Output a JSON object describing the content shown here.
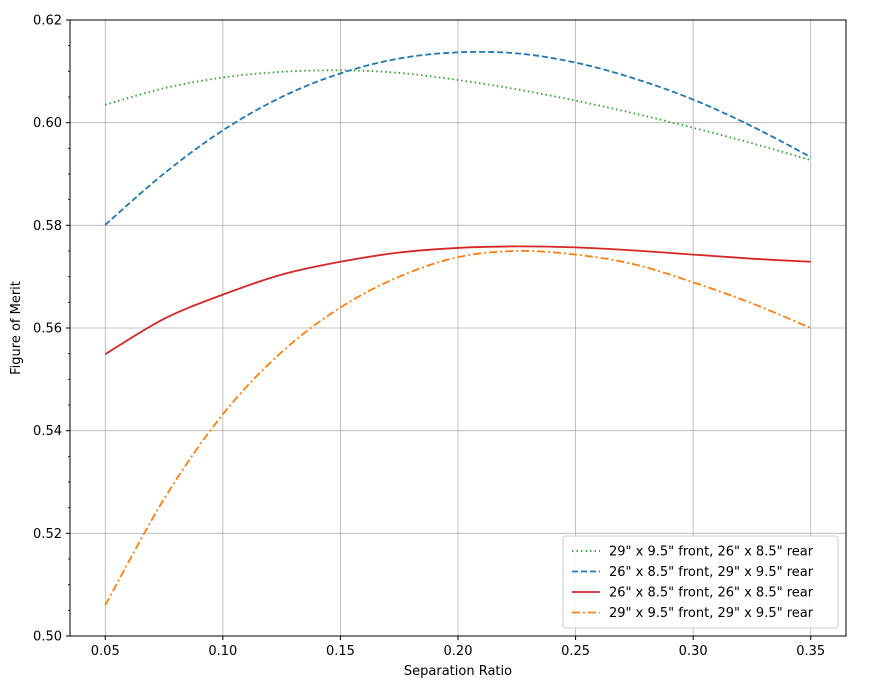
{
  "chart_data": {
    "type": "line",
    "xlabel": "Separation Ratio",
    "ylabel": "Figure of Merit",
    "xlim": [
      0.035,
      0.365
    ],
    "ylim": [
      0.5,
      0.62
    ],
    "xticks": [
      "0.05",
      "0.10",
      "0.15",
      "0.20",
      "0.25",
      "0.30",
      "0.35"
    ],
    "yticks": [
      "0.50",
      "0.52",
      "0.54",
      "0.56",
      "0.58",
      "0.60",
      "0.62"
    ],
    "grid": true,
    "legend_position": "lower-right",
    "x": [
      0.05,
      0.075,
      0.1,
      0.125,
      0.15,
      0.175,
      0.2,
      0.225,
      0.25,
      0.275,
      0.3,
      0.325,
      0.35
    ],
    "series": [
      {
        "name": "29\" x 9.5\" front, 26\" x 8.5\" rear",
        "color": "#2ca02c",
        "style": "dotted",
        "values": [
          0.6035,
          0.6067,
          0.6088,
          0.6099,
          0.6102,
          0.6097,
          0.6083,
          0.6065,
          0.6043,
          0.6018,
          0.599,
          0.596,
          0.5927
        ]
      },
      {
        "name": "26\" x 8.5\" front, 29\" x 9.5\" rear",
        "color": "#1f77b4",
        "style": "dashed",
        "values": [
          0.5801,
          0.5901,
          0.5985,
          0.605,
          0.6096,
          0.6125,
          0.6137,
          0.6135,
          0.6117,
          0.6086,
          0.6045,
          0.5993,
          0.5933
        ]
      },
      {
        "name": "26\" x 8.5\" front, 26\" x 8.5\" rear",
        "color": "#d62728",
        "style": "solid",
        "values": [
          0.5549,
          0.5618,
          0.5665,
          0.5704,
          0.5729,
          0.5747,
          0.5756,
          0.5759,
          0.5757,
          0.5751,
          0.5743,
          0.5735,
          0.5729
        ]
      },
      {
        "name": "29\" x 9.5\" front, 29\" x 9.5\" rear",
        "color": "#ff7f0e",
        "style": "dashdot",
        "values": [
          0.506,
          0.5267,
          0.5432,
          0.5553,
          0.564,
          0.57,
          0.5738,
          0.575,
          0.5743,
          0.5724,
          0.5689,
          0.5648,
          0.56
        ]
      }
    ]
  }
}
